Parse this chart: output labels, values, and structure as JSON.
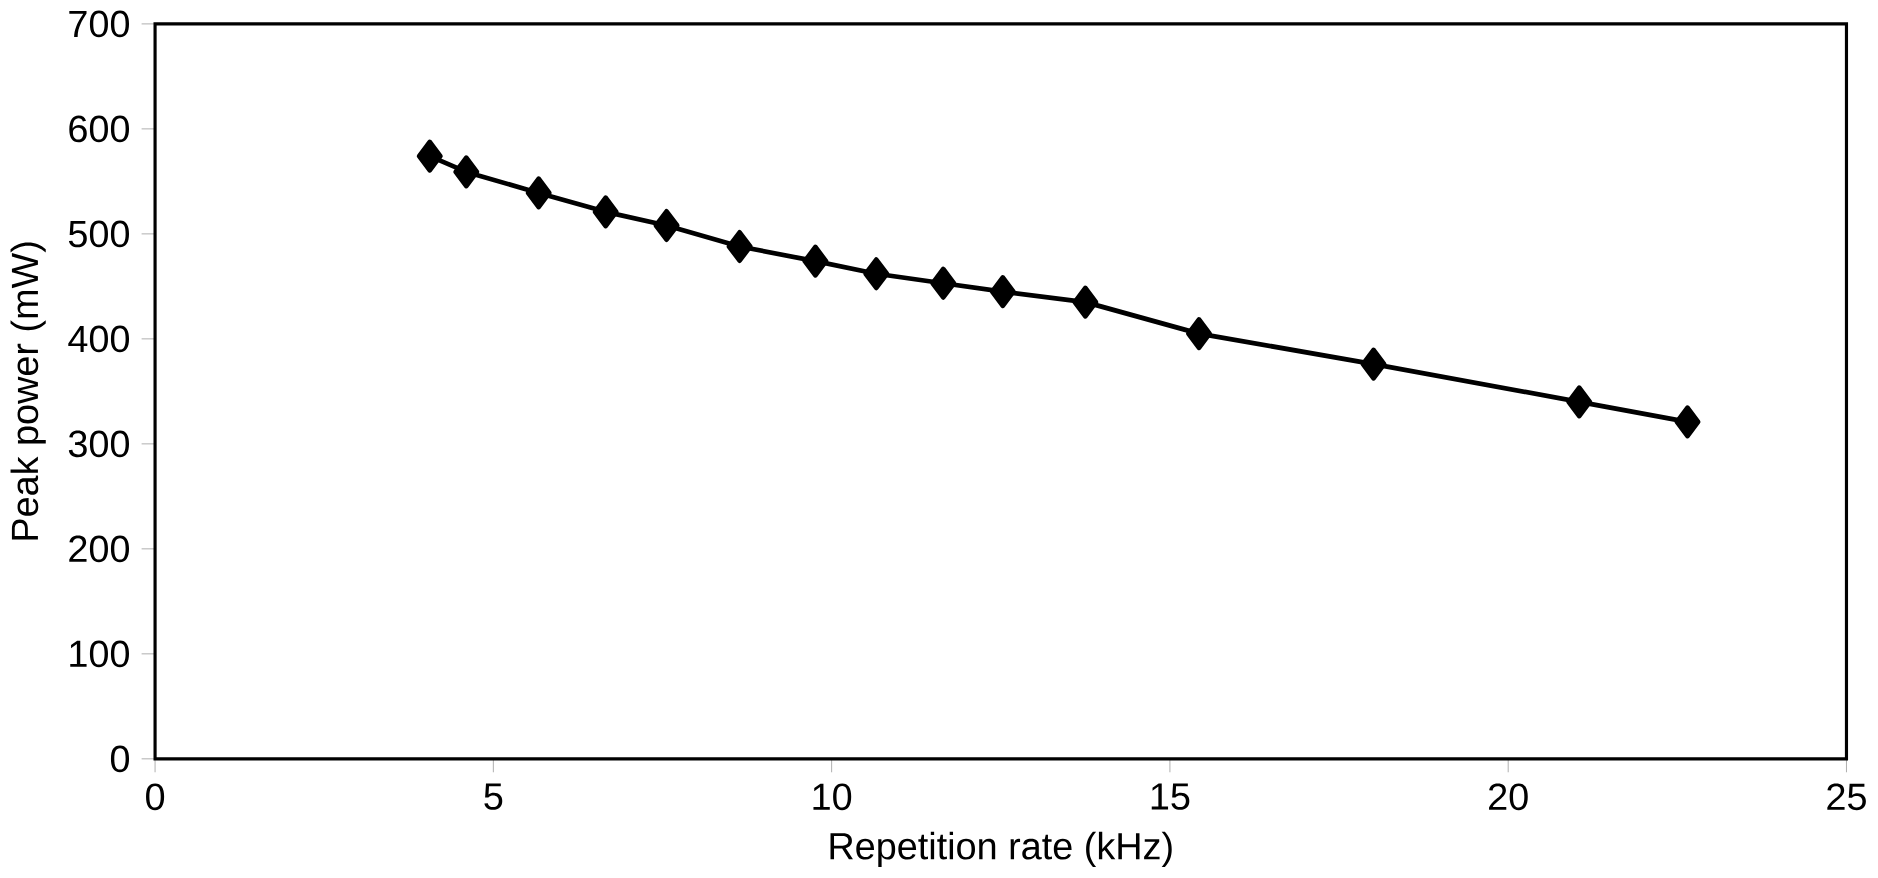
{
  "chart_data": {
    "type": "line",
    "xlabel": "Repetition rate (kHz)",
    "ylabel": "Peak power (mW)",
    "x": [
      4.06,
      4.6,
      5.67,
      6.66,
      7.56,
      8.64,
      9.76,
      10.66,
      11.65,
      12.53,
      13.75,
      15.43,
      18.01,
      21.05,
      22.65
    ],
    "series": [
      {
        "color": "#000000",
        "values": [
          574,
          559,
          539,
          521,
          508,
          488,
          474,
          462,
          453,
          445,
          435,
          405,
          376,
          340,
          321
        ]
      }
    ],
    "xlim": [
      0,
      25
    ],
    "ylim": [
      0,
      700
    ],
    "xticks": [
      0,
      5,
      10,
      15,
      20,
      25
    ],
    "yticks": [
      0,
      100,
      200,
      300,
      400,
      500,
      600,
      700
    ],
    "marker": "diamond",
    "line_style": "solid",
    "grid": false
  }
}
